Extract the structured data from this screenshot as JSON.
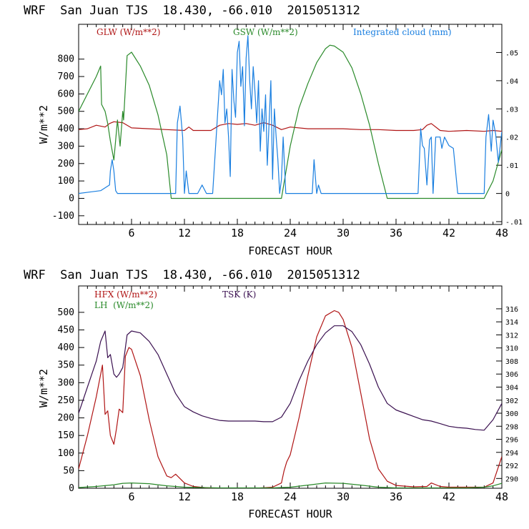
{
  "chart_data": [
    {
      "type": "line",
      "title": "WRF  San Juan TJS  18.430, -66.010  2015051312",
      "xlabel": "FORECAST HOUR",
      "ylabel": "W/m**2",
      "xlim": [
        0,
        48
      ],
      "ylim": [
        -150,
        1000
      ],
      "y2lim": [
        -0.011,
        0.06
      ],
      "xticks": [
        "6",
        "12",
        "18",
        "24",
        "30",
        "36",
        "42",
        "48"
      ],
      "yticks": [
        "-100",
        "0",
        "100",
        "200",
        "300",
        "400",
        "500",
        "600",
        "700",
        "800"
      ],
      "y2ticks": [
        "-.01",
        "0",
        ".01",
        ".02",
        ".03",
        ".04",
        ".05"
      ],
      "grid": false,
      "colors": {
        "glw": "#b01515",
        "gsw": "#2a8a2a",
        "cloud": "#1a7fe0"
      },
      "series": [
        {
          "name": "GLW (W/m**2)",
          "axis": "left",
          "x": [
            0,
            1,
            2,
            3,
            3.5,
            4,
            5,
            6,
            8,
            10,
            12,
            12.5,
            13,
            15,
            16,
            17,
            18,
            19,
            20,
            21,
            22,
            23,
            24,
            26,
            28,
            30,
            32,
            34,
            36,
            38,
            39,
            39.5,
            40,
            41,
            42,
            44,
            46,
            47,
            48
          ],
          "y": [
            395,
            400,
            420,
            410,
            430,
            440,
            435,
            405,
            400,
            395,
            390,
            410,
            390,
            390,
            420,
            430,
            425,
            430,
            420,
            435,
            420,
            395,
            410,
            400,
            400,
            400,
            395,
            395,
            390,
            390,
            395,
            420,
            430,
            390,
            385,
            390,
            385,
            390,
            385
          ]
        },
        {
          "name": "GSW (W/m**2)",
          "axis": "left",
          "x": [
            0,
            1,
            2,
            2.5,
            2.6,
            3,
            3.3,
            3.6,
            4,
            4.4,
            4.7,
            5,
            5.1,
            5.5,
            6,
            7,
            8,
            9,
            10,
            10.5,
            23,
            24,
            25,
            26,
            27,
            28,
            28.5,
            29,
            30,
            31,
            32,
            33,
            34,
            35,
            46,
            47,
            48
          ],
          "y": [
            500,
            600,
            700,
            760,
            540,
            500,
            430,
            330,
            220,
            450,
            300,
            500,
            450,
            820,
            840,
            760,
            650,
            480,
            250,
            0,
            0,
            300,
            520,
            660,
            780,
            860,
            880,
            875,
            840,
            750,
            600,
            420,
            200,
            0,
            0,
            100,
            280
          ]
        },
        {
          "name": "Integrated cloud (mm)",
          "axis": "right",
          "x": [
            0,
            2.5,
            3,
            3.5,
            3.6,
            3.8,
            4,
            4.2,
            4.4,
            4.6,
            10,
            11,
            11.2,
            11.5,
            11.8,
            12,
            12.2,
            12.5,
            13,
            13.5,
            14,
            14.5,
            15,
            15.2,
            16,
            16.2,
            16.4,
            16.6,
            16.8,
            17,
            17.2,
            17.4,
            17.6,
            17.8,
            18,
            18.2,
            18.4,
            18.6,
            18.8,
            19,
            19.2,
            19.4,
            19.6,
            19.8,
            20,
            20.2,
            20.4,
            20.6,
            20.8,
            21,
            21.2,
            21.4,
            21.6,
            21.8,
            22,
            22.2,
            22.4,
            22.6,
            22.8,
            23,
            23.2,
            23.5,
            24,
            26.5,
            26.7,
            27,
            27.2,
            27.5,
            38.5,
            38.8,
            39,
            39.2,
            39.5,
            39.8,
            40,
            40.2,
            40.5,
            41,
            41.2,
            41.5,
            42,
            42.5,
            43,
            46,
            46.2,
            46.5,
            46.8,
            47,
            47.3,
            47.6,
            48
          ],
          "y": [
            0,
            0.001,
            0.002,
            0.003,
            0.008,
            0.012,
            0.008,
            0.001,
            0,
            0,
            0,
            0,
            0.025,
            0.031,
            0.02,
            0,
            0.008,
            0,
            0,
            0,
            0.003,
            0,
            0,
            0,
            0.04,
            0.035,
            0.044,
            0.025,
            0.03,
            0.02,
            0.006,
            0.044,
            0.033,
            0.027,
            0.05,
            0.054,
            0.038,
            0.045,
            0.024,
            0.048,
            0.056,
            0.04,
            0.03,
            0.045,
            0.036,
            0.025,
            0.04,
            0.015,
            0.03,
            0.022,
            0.035,
            0.01,
            0.025,
            0.04,
            0.005,
            0.03,
            0.02,
            0.012,
            0,
            0.005,
            0.02,
            0,
            0,
            0,
            0.012,
            0,
            0.003,
            0,
            0,
            0.023,
            0.017,
            0.016,
            0.003,
            0.019,
            0.02,
            0,
            0.02,
            0.02,
            0.016,
            0.02,
            0.017,
            0.016,
            0,
            0,
            0.02,
            0.028,
            0.015,
            0.026,
            0.021,
            0.011,
            0.022
          ]
        }
      ]
    },
    {
      "type": "line",
      "title": "WRF  San Juan TJS  18.430, -66.010  2015051312",
      "xlabel": "FORECAST HOUR",
      "ylabel": "W/m**2",
      "xlim": [
        0,
        48
      ],
      "ylim": [
        0,
        575
      ],
      "y2lim": [
        288.5,
        319.5
      ],
      "xticks": [
        "6",
        "12",
        "18",
        "24",
        "30",
        "36",
        "42",
        "48"
      ],
      "yticks": [
        "0",
        "50",
        "100",
        "150",
        "200",
        "250",
        "300",
        "350",
        "400",
        "450",
        "500"
      ],
      "y2ticks": [
        "290",
        "292",
        "294",
        "296",
        "298",
        "300",
        "302",
        "304",
        "306",
        "308",
        "310",
        "312",
        "314",
        "316"
      ],
      "grid": false,
      "colors": {
        "hfx": "#b01515",
        "lh": "#2a8a2a",
        "tsk": "#3a1050"
      },
      "series": [
        {
          "name": "HFX (W/m**2)",
          "axis": "left",
          "x": [
            0,
            1,
            2,
            2.7,
            3,
            3.3,
            3.6,
            4,
            4.3,
            4.6,
            5,
            5.3,
            5.7,
            6,
            7,
            8,
            9,
            10,
            10.5,
            11,
            12,
            13,
            15,
            20,
            22,
            23,
            23.3,
            23.6,
            24,
            25,
            26,
            27,
            28,
            29,
            29.5,
            30,
            31,
            32,
            33,
            34,
            35,
            36,
            38,
            39.5,
            40,
            41,
            42,
            44,
            46,
            47,
            48
          ],
          "y": [
            55,
            150,
            260,
            350,
            210,
            220,
            150,
            125,
            170,
            225,
            215,
            375,
            400,
            395,
            320,
            195,
            90,
            35,
            30,
            40,
            15,
            5,
            0,
            0,
            3,
            15,
            50,
            75,
            95,
            200,
            320,
            430,
            490,
            505,
            500,
            480,
            400,
            270,
            140,
            55,
            20,
            8,
            4,
            5,
            15,
            5,
            3,
            3,
            3,
            15,
            90
          ]
        },
        {
          "name": "LH  (W/m**2)",
          "axis": "left",
          "x": [
            0,
            2,
            4,
            5,
            6,
            8,
            10,
            12,
            16,
            22,
            24,
            26,
            28,
            30,
            32,
            34,
            36,
            44,
            46,
            47,
            48
          ],
          "y": [
            2,
            5,
            10,
            14,
            15,
            13,
            7,
            3,
            1,
            1,
            3,
            9,
            15,
            14,
            9,
            3,
            1,
            1,
            3,
            7,
            14
          ]
        },
        {
          "name": "TSK (K)",
          "axis": "right",
          "x": [
            0,
            1,
            2,
            2.5,
            3,
            3.3,
            3.6,
            4,
            4.3,
            4.6,
            5,
            5.5,
            6,
            7,
            8,
            9,
            10,
            11,
            12,
            13,
            14,
            15,
            16,
            17,
            18,
            19,
            20,
            21,
            22,
            23,
            24,
            25,
            26,
            27,
            28,
            29,
            30,
            31,
            32,
            33,
            34,
            35,
            36,
            37,
            38,
            39,
            40,
            41,
            42,
            43,
            44,
            45,
            46,
            47,
            48
          ],
          "y": [
            300,
            304,
            308,
            311,
            312.6,
            308.5,
            309,
            306,
            305.5,
            306,
            307,
            312,
            312.6,
            312.3,
            311,
            309,
            306,
            303,
            301,
            300.2,
            299.6,
            299.2,
            298.9,
            298.8,
            298.8,
            298.8,
            298.8,
            298.7,
            298.7,
            299.4,
            301.5,
            305,
            308,
            310.5,
            312.3,
            313.4,
            313.4,
            312.5,
            310.5,
            307.5,
            304,
            301.5,
            300.5,
            300,
            299.5,
            299,
            298.8,
            298.4,
            298,
            297.8,
            297.7,
            297.5,
            297.4,
            299,
            301.5
          ]
        }
      ]
    }
  ]
}
